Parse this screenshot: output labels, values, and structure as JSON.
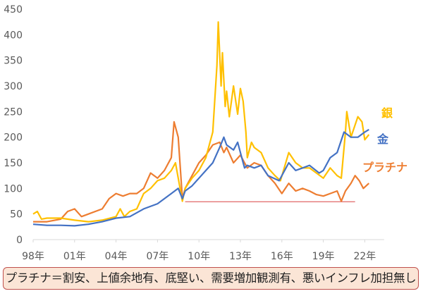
{
  "chart_data": {
    "type": "line",
    "title": "",
    "xlabel": "",
    "ylabel": "",
    "ylim": [
      0,
      450
    ],
    "yticks": [
      0,
      50,
      100,
      150,
      200,
      250,
      300,
      350,
      400,
      450
    ],
    "xlim": [
      1998,
      2023.4
    ],
    "xticks": [
      {
        "year": 1998,
        "label": "98年"
      },
      {
        "year": 2001,
        "label": "01年"
      },
      {
        "year": 2004,
        "label": "04年"
      },
      {
        "year": 2007,
        "label": "07年"
      },
      {
        "year": 2010,
        "label": "10年"
      },
      {
        "year": 2013,
        "label": "13年"
      },
      {
        "year": 2016,
        "label": "16年"
      },
      {
        "year": 2019,
        "label": "19年"
      },
      {
        "year": 2022,
        "label": "22年"
      }
    ],
    "grid": false,
    "legend_placement": "right, inline labels",
    "series": [
      {
        "name": "銀",
        "color": "#FFC000",
        "points": [
          [
            1998,
            50
          ],
          [
            1998.3,
            55
          ],
          [
            1998.6,
            40
          ],
          [
            1999,
            42
          ],
          [
            2000,
            42
          ],
          [
            2001,
            38
          ],
          [
            2002,
            35
          ],
          [
            2003,
            38
          ],
          [
            2004,
            45
          ],
          [
            2004.3,
            60
          ],
          [
            2004.6,
            45
          ],
          [
            2005,
            55
          ],
          [
            2005.5,
            60
          ],
          [
            2006,
            90
          ],
          [
            2006.5,
            100
          ],
          [
            2007,
            115
          ],
          [
            2007.5,
            120
          ],
          [
            2008,
            135
          ],
          [
            2008.3,
            150
          ],
          [
            2008.8,
            75
          ],
          [
            2009,
            100
          ],
          [
            2009.5,
            120
          ],
          [
            2010,
            135
          ],
          [
            2010.5,
            160
          ],
          [
            2011,
            210
          ],
          [
            2011.3,
            340
          ],
          [
            2011.4,
            425
          ],
          [
            2011.6,
            300
          ],
          [
            2011.7,
            365
          ],
          [
            2011.9,
            260
          ],
          [
            2012,
            290
          ],
          [
            2012.2,
            240
          ],
          [
            2012.5,
            300
          ],
          [
            2012.8,
            245
          ],
          [
            2013,
            295
          ],
          [
            2013.2,
            270
          ],
          [
            2013.4,
            210
          ],
          [
            2013.5,
            160
          ],
          [
            2013.8,
            190
          ],
          [
            2014,
            180
          ],
          [
            2014.5,
            170
          ],
          [
            2015,
            140
          ],
          [
            2015.5,
            125
          ],
          [
            2015.9,
            115
          ],
          [
            2016.5,
            170
          ],
          [
            2017,
            150
          ],
          [
            2017.5,
            140
          ],
          [
            2018,
            140
          ],
          [
            2018.5,
            130
          ],
          [
            2019,
            120
          ],
          [
            2019.5,
            140
          ],
          [
            2020,
            125
          ],
          [
            2020.3,
            120
          ],
          [
            2020.6,
            210
          ],
          [
            2020.7,
            250
          ],
          [
            2021,
            200
          ],
          [
            2021.5,
            240
          ],
          [
            2021.8,
            230
          ],
          [
            2022,
            195
          ],
          [
            2022.3,
            205
          ]
        ]
      },
      {
        "name": "金",
        "color": "#4472C4",
        "points": [
          [
            1998,
            30
          ],
          [
            1999,
            28
          ],
          [
            2000,
            28
          ],
          [
            2001,
            27
          ],
          [
            2002,
            30
          ],
          [
            2003,
            35
          ],
          [
            2004,
            42
          ],
          [
            2005,
            45
          ],
          [
            2006,
            60
          ],
          [
            2007,
            70
          ],
          [
            2008,
            90
          ],
          [
            2008.5,
            100
          ],
          [
            2008.8,
            80
          ],
          [
            2009,
            95
          ],
          [
            2009.5,
            105
          ],
          [
            2010,
            120
          ],
          [
            2010.5,
            135
          ],
          [
            2011,
            150
          ],
          [
            2011.5,
            180
          ],
          [
            2011.8,
            200
          ],
          [
            2012,
            185
          ],
          [
            2012.5,
            175
          ],
          [
            2012.8,
            190
          ],
          [
            2013,
            170
          ],
          [
            2013.3,
            140
          ],
          [
            2013.5,
            145
          ],
          [
            2014,
            140
          ],
          [
            2014.5,
            145
          ],
          [
            2015,
            125
          ],
          [
            2015.8,
            115
          ],
          [
            2016.5,
            150
          ],
          [
            2017,
            135
          ],
          [
            2017.5,
            140
          ],
          [
            2018,
            145
          ],
          [
            2018.7,
            130
          ],
          [
            2019,
            135
          ],
          [
            2019.5,
            160
          ],
          [
            2020,
            170
          ],
          [
            2020.5,
            210
          ],
          [
            2021,
            200
          ],
          [
            2021.5,
            200
          ],
          [
            2022,
            210
          ],
          [
            2022.3,
            215
          ]
        ]
      },
      {
        "name": "プラチナ",
        "color": "#ED7D31",
        "points": [
          [
            1998,
            35
          ],
          [
            1999,
            35
          ],
          [
            2000,
            40
          ],
          [
            2000.5,
            55
          ],
          [
            2001,
            60
          ],
          [
            2001.5,
            45
          ],
          [
            2002,
            50
          ],
          [
            2003,
            60
          ],
          [
            2003.5,
            80
          ],
          [
            2004,
            90
          ],
          [
            2004.5,
            85
          ],
          [
            2005,
            90
          ],
          [
            2005.5,
            90
          ],
          [
            2006,
            100
          ],
          [
            2006.5,
            130
          ],
          [
            2007,
            120
          ],
          [
            2007.5,
            135
          ],
          [
            2008,
            160
          ],
          [
            2008.2,
            230
          ],
          [
            2008.5,
            200
          ],
          [
            2008.8,
            80
          ],
          [
            2009,
            100
          ],
          [
            2009.5,
            125
          ],
          [
            2010,
            150
          ],
          [
            2010.5,
            165
          ],
          [
            2011,
            185
          ],
          [
            2011.5,
            190
          ],
          [
            2011.8,
            170
          ],
          [
            2012,
            180
          ],
          [
            2012.5,
            150
          ],
          [
            2013,
            165
          ],
          [
            2013.5,
            140
          ],
          [
            2014,
            150
          ],
          [
            2014.5,
            145
          ],
          [
            2015,
            125
          ],
          [
            2015.5,
            110
          ],
          [
            2016,
            90
          ],
          [
            2016.5,
            110
          ],
          [
            2017,
            95
          ],
          [
            2017.5,
            100
          ],
          [
            2018,
            95
          ],
          [
            2018.5,
            88
          ],
          [
            2019,
            85
          ],
          [
            2019.5,
            90
          ],
          [
            2020,
            95
          ],
          [
            2020.3,
            75
          ],
          [
            2020.6,
            95
          ],
          [
            2021,
            110
          ],
          [
            2021.3,
            125
          ],
          [
            2021.6,
            115
          ],
          [
            2021.9,
            100
          ],
          [
            2022.3,
            110
          ]
        ]
      }
    ],
    "annotations": [
      {
        "type": "hline",
        "value": 74,
        "from": 2009.0,
        "to": 2021.3,
        "color": "#E06666"
      }
    ],
    "caption": "プラチナ＝割安、上値余地有、底堅い、需要増加観測有、悪いインフレ加担無し"
  }
}
